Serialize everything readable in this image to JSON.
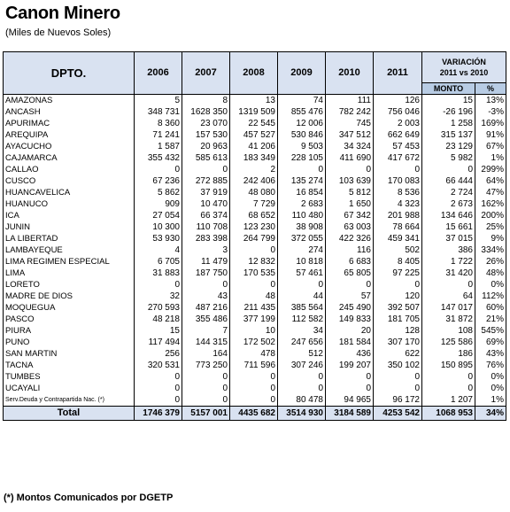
{
  "title": "Canon Minero",
  "subtitle": "(Miles de Nuevos Soles)",
  "headers": {
    "dept": "DPTO.",
    "years": [
      "2006",
      "2007",
      "2008",
      "2009",
      "2010",
      "2011"
    ],
    "variation_line1": "VARIACIÓN",
    "variation_line2": "2011 vs 2010",
    "monto": "MONTO",
    "pct": "%"
  },
  "rows": [
    [
      "AMAZONAS",
      "5",
      "8",
      "13",
      "74",
      "111",
      "126",
      "15",
      "13%"
    ],
    [
      "ANCASH",
      "348 731",
      "1628 350",
      "1319 509",
      "855 476",
      "782 242",
      "756 046",
      "-26 196",
      "-3%"
    ],
    [
      "APURIMAC",
      "8 360",
      "23 070",
      "22 545",
      "12 006",
      "745",
      "2 003",
      "1 258",
      "169%"
    ],
    [
      "AREQUIPA",
      "71 241",
      "157 530",
      "457 527",
      "530 846",
      "347 512",
      "662 649",
      "315 137",
      "91%"
    ],
    [
      "AYACUCHO",
      "1 587",
      "20 963",
      "41 206",
      "9 503",
      "34 324",
      "57 453",
      "23 129",
      "67%"
    ],
    [
      "CAJAMARCA",
      "355 432",
      "585 613",
      "183 349",
      "228 105",
      "411 690",
      "417 672",
      "5 982",
      "1%"
    ],
    [
      "CALLAO",
      "0",
      "0",
      "2",
      "0",
      "0",
      "0",
      "0",
      "299%"
    ],
    [
      "CUSCO",
      "67 236",
      "272 885",
      "242 406",
      "135 274",
      "103 639",
      "170 083",
      "66 444",
      "64%"
    ],
    [
      "HUANCAVELICA",
      "5 862",
      "37 919",
      "48 080",
      "16 854",
      "5 812",
      "8 536",
      "2 724",
      "47%"
    ],
    [
      "HUANUCO",
      "909",
      "10 470",
      "7 729",
      "2 683",
      "1 650",
      "4 323",
      "2 673",
      "162%"
    ],
    [
      "ICA",
      "27 054",
      "66 374",
      "68 652",
      "110 480",
      "67 342",
      "201 988",
      "134 646",
      "200%"
    ],
    [
      "JUNIN",
      "10 300",
      "110 708",
      "123 230",
      "38 908",
      "63 003",
      "78 664",
      "15 661",
      "25%"
    ],
    [
      "LA LIBERTAD",
      "53 930",
      "283 398",
      "264 799",
      "372 055",
      "422 326",
      "459 341",
      "37 015",
      "9%"
    ],
    [
      "LAMBAYEQUE",
      "4",
      "3",
      "0",
      "274",
      "116",
      "502",
      "386",
      "334%"
    ],
    [
      "LIMA REGIMEN ESPECIAL",
      "6 705",
      "11 479",
      "12 832",
      "10 818",
      "6 683",
      "8 405",
      "1 722",
      "26%"
    ],
    [
      "LIMA",
      "31 883",
      "187 750",
      "170 535",
      "57 461",
      "65 805",
      "97 225",
      "31 420",
      "48%"
    ],
    [
      "LORETO",
      "0",
      "0",
      "0",
      "0",
      "0",
      "0",
      "0",
      "0%"
    ],
    [
      "MADRE DE DIOS",
      "32",
      "43",
      "48",
      "44",
      "57",
      "120",
      "64",
      "112%"
    ],
    [
      "MOQUEGUA",
      "270 593",
      "487 216",
      "211 435",
      "385 564",
      "245 490",
      "392 507",
      "147 017",
      "60%"
    ],
    [
      "PASCO",
      "48 218",
      "355 486",
      "377 199",
      "112 582",
      "149 833",
      "181 705",
      "31 872",
      "21%"
    ],
    [
      "PIURA",
      "15",
      "7",
      "10",
      "34",
      "20",
      "128",
      "108",
      "545%"
    ],
    [
      "PUNO",
      "117 494",
      "144 315",
      "172 502",
      "247 656",
      "181 584",
      "307 170",
      "125 586",
      "69%"
    ],
    [
      "SAN MARTIN",
      "256",
      "164",
      "478",
      "512",
      "436",
      "622",
      "186",
      "43%"
    ],
    [
      "TACNA",
      "320 531",
      "773 250",
      "711 596",
      "307 246",
      "199 207",
      "350 102",
      "150 895",
      "76%"
    ],
    [
      "TUMBES",
      "0",
      "0",
      "0",
      "0",
      "0",
      "0",
      "0",
      "0%"
    ],
    [
      "UCAYALI",
      "0",
      "0",
      "0",
      "0",
      "0",
      "0",
      "0",
      "0%"
    ],
    [
      "Serv.Deuda y Contrapartida Nac. (*)",
      "0",
      "0",
      "0",
      "80 478",
      "94 965",
      "96 172",
      "1 207",
      "1%"
    ]
  ],
  "total": [
    "Total",
    "1746 379",
    "5157 001",
    "4435 682",
    "3514 930",
    "3184 589",
    "4253 542",
    "1068 953",
    "34%"
  ],
  "note": "(*) Montos Comunicados por DGETP"
}
